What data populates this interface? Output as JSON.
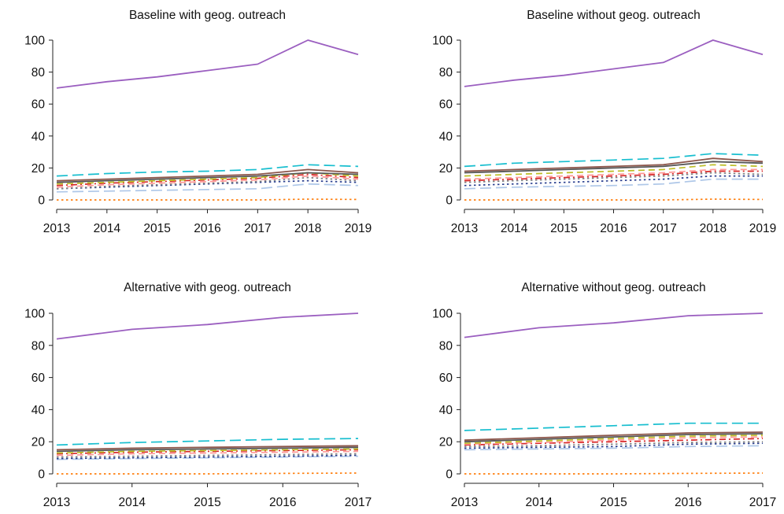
{
  "chart_data": [
    {
      "type": "line",
      "title": "Baseline with geog. outreach",
      "x": [
        2013,
        2014,
        2015,
        2016,
        2017,
        2018,
        2019
      ],
      "xticks": [
        "2013",
        "2014",
        "2015",
        "2016",
        "2017",
        "2018",
        "2019"
      ],
      "ylim": [
        0,
        100
      ],
      "yticks": [
        "0",
        "20",
        "40",
        "60",
        "80",
        "100"
      ],
      "grid": false,
      "series": [
        {
          "color": "#9b5fc0",
          "dash": "solid",
          "values": [
            70,
            74,
            77,
            81,
            85,
            100,
            91
          ]
        },
        {
          "color": "#17becf",
          "dash": "long",
          "values": [
            15,
            16.5,
            17.5,
            18,
            19,
            22,
            21
          ]
        },
        {
          "color": "#8c564b",
          "dash": "solid",
          "values": [
            12,
            13,
            14,
            15,
            16,
            19,
            17
          ]
        },
        {
          "color": "#555555",
          "dash": "solid",
          "values": [
            11,
            12,
            13,
            14,
            15,
            17,
            16
          ]
        },
        {
          "color": "#bcbd22",
          "dash": "dash",
          "values": [
            10,
            11,
            12,
            13,
            14,
            17,
            15
          ]
        },
        {
          "color": "#d62728",
          "dash": "dashdot",
          "values": [
            9,
            10.5,
            11.5,
            12.5,
            13.5,
            16,
            14
          ]
        },
        {
          "color": "#ff9896",
          "dash": "dash",
          "values": [
            8,
            9.5,
            10.5,
            11.5,
            12.5,
            15,
            13
          ]
        },
        {
          "color": "#7f7f7f",
          "dash": "dot",
          "values": [
            7,
            8.5,
            9.5,
            10.5,
            11.5,
            14,
            12
          ]
        },
        {
          "color": "#2a3f8f",
          "dash": "dot",
          "values": [
            7,
            8,
            9,
            10,
            11,
            12,
            11
          ]
        },
        {
          "color": "#aec7e8",
          "dash": "long",
          "values": [
            5,
            5.5,
            6,
            6.5,
            7,
            10,
            9
          ]
        },
        {
          "color": "#ff7f0e",
          "dash": "dot",
          "values": [
            0,
            0,
            0,
            0,
            0,
            0.5,
            0.3
          ]
        }
      ]
    },
    {
      "type": "line",
      "title": "Baseline without geog. outreach",
      "x": [
        2013,
        2014,
        2015,
        2016,
        2017,
        2018,
        2019
      ],
      "xticks": [
        "2013",
        "2014",
        "2015",
        "2016",
        "2017",
        "2018",
        "2019"
      ],
      "ylim": [
        0,
        100
      ],
      "yticks": [
        "0",
        "20",
        "40",
        "60",
        "80",
        "100"
      ],
      "grid": false,
      "series": [
        {
          "color": "#9b5fc0",
          "dash": "solid",
          "values": [
            71,
            75,
            78,
            82,
            86,
            100,
            91
          ]
        },
        {
          "color": "#17becf",
          "dash": "long",
          "values": [
            21,
            23,
            24,
            25,
            26,
            29,
            28
          ]
        },
        {
          "color": "#8c564b",
          "dash": "solid",
          "values": [
            18,
            19,
            20,
            21,
            22,
            26,
            24
          ]
        },
        {
          "color": "#555555",
          "dash": "solid",
          "values": [
            17,
            18,
            19,
            20,
            21,
            24,
            23
          ]
        },
        {
          "color": "#bcbd22",
          "dash": "dash",
          "values": [
            15,
            16,
            17,
            18,
            19,
            22,
            21
          ]
        },
        {
          "color": "#ff9896",
          "dash": "dash",
          "values": [
            13,
            14,
            15,
            16,
            17,
            19,
            19
          ]
        },
        {
          "color": "#d62728",
          "dash": "dashdot",
          "values": [
            12,
            13,
            14,
            15,
            16,
            18,
            18
          ]
        },
        {
          "color": "#7f7f7f",
          "dash": "dot",
          "values": [
            11,
            12,
            13,
            14,
            15,
            17,
            16
          ]
        },
        {
          "color": "#2a3f8f",
          "dash": "dot",
          "values": [
            9,
            10,
            11,
            12,
            13,
            15,
            15
          ]
        },
        {
          "color": "#aec7e8",
          "dash": "long",
          "values": [
            7,
            8,
            8.5,
            9,
            10,
            13,
            13
          ]
        },
        {
          "color": "#ff7f0e",
          "dash": "dot",
          "values": [
            0,
            0,
            0,
            0,
            0,
            0.5,
            0.3
          ]
        }
      ]
    },
    {
      "type": "line",
      "title": "Alternative with geog. outreach",
      "x": [
        2013,
        2014,
        2015,
        2016,
        2017
      ],
      "xticks": [
        "2013",
        "2014",
        "2015",
        "2016",
        "2017"
      ],
      "ylim": [
        0,
        100
      ],
      "yticks": [
        "0",
        "20",
        "40",
        "60",
        "80",
        "100"
      ],
      "grid": false,
      "series": [
        {
          "color": "#9b5fc0",
          "dash": "solid",
          "values": [
            84,
            90,
            93,
            97.5,
            100
          ]
        },
        {
          "color": "#17becf",
          "dash": "long",
          "values": [
            18,
            19.5,
            20.5,
            21.5,
            22
          ]
        },
        {
          "color": "#8c564b",
          "dash": "solid",
          "values": [
            15,
            16,
            16.5,
            17,
            17.5
          ]
        },
        {
          "color": "#555555",
          "dash": "solid",
          "values": [
            14,
            15,
            15.5,
            16,
            16.5
          ]
        },
        {
          "color": "#bcbd22",
          "dash": "dash",
          "values": [
            13,
            14,
            14.5,
            15,
            15.5
          ]
        },
        {
          "color": "#d62728",
          "dash": "dashdot",
          "values": [
            12.5,
            13.5,
            14,
            14.5,
            15
          ]
        },
        {
          "color": "#ff9896",
          "dash": "dash",
          "values": [
            11.5,
            12.5,
            13,
            13.5,
            14
          ]
        },
        {
          "color": "#7f7f7f",
          "dash": "dot",
          "values": [
            10.5,
            11,
            11.5,
            12,
            12.5
          ]
        },
        {
          "color": "#2a3f8f",
          "dash": "dot",
          "values": [
            9.5,
            10,
            10.5,
            11,
            11.5
          ]
        },
        {
          "color": "#aec7e8",
          "dash": "long",
          "values": [
            9,
            9.5,
            10,
            10.5,
            11
          ]
        },
        {
          "color": "#ff7f0e",
          "dash": "dot",
          "values": [
            0,
            0,
            0,
            0.3,
            0.5
          ]
        }
      ]
    },
    {
      "type": "line",
      "title": "Alternative without geog. outreach",
      "x": [
        2013,
        2014,
        2015,
        2016,
        2017
      ],
      "xticks": [
        "2013",
        "2014",
        "2015",
        "2016",
        "2017"
      ],
      "ylim": [
        0,
        100
      ],
      "yticks": [
        "0",
        "20",
        "40",
        "60",
        "80",
        "100"
      ],
      "grid": false,
      "series": [
        {
          "color": "#9b5fc0",
          "dash": "solid",
          "values": [
            85,
            91,
            94,
            98.5,
            100
          ]
        },
        {
          "color": "#17becf",
          "dash": "long",
          "values": [
            27,
            28.5,
            30,
            31.5,
            31.5
          ]
        },
        {
          "color": "#8c564b",
          "dash": "solid",
          "values": [
            21,
            22.5,
            24,
            25.5,
            26
          ]
        },
        {
          "color": "#555555",
          "dash": "solid",
          "values": [
            20,
            21.5,
            23,
            24.5,
            25
          ]
        },
        {
          "color": "#bcbd22",
          "dash": "dash",
          "values": [
            19,
            20.5,
            22,
            23.5,
            24
          ]
        },
        {
          "color": "#ff9896",
          "dash": "dash",
          "values": [
            18.5,
            19.5,
            21,
            22.5,
            23
          ]
        },
        {
          "color": "#d62728",
          "dash": "dashdot",
          "values": [
            18,
            19,
            20,
            21,
            22
          ]
        },
        {
          "color": "#7f7f7f",
          "dash": "dot",
          "values": [
            17,
            17.5,
            18.5,
            19.5,
            20
          ]
        },
        {
          "color": "#2a3f8f",
          "dash": "dot",
          "values": [
            16,
            16.5,
            17,
            18.5,
            19
          ]
        },
        {
          "color": "#aec7e8",
          "dash": "long",
          "values": [
            15,
            15.5,
            16,
            17,
            17.5
          ]
        },
        {
          "color": "#ff7f0e",
          "dash": "dot",
          "values": [
            0,
            0,
            0,
            0.3,
            0.5
          ]
        }
      ]
    }
  ]
}
